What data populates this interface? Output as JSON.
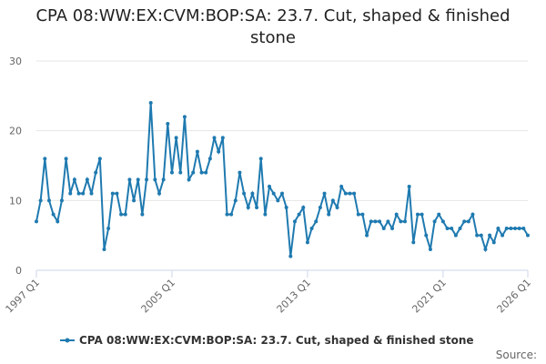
{
  "chart_data": {
    "type": "line",
    "title": "CPA 08:WW:EX:CVM:BOP:SA: 23.7. Cut, shaped & finished stone",
    "source": "Source:",
    "categories": [
      "1997 Q1",
      null,
      null,
      null,
      null,
      null,
      null,
      null,
      null,
      null,
      null,
      null,
      null,
      null,
      null,
      null,
      null,
      null,
      null,
      null,
      null,
      null,
      null,
      null,
      null,
      null,
      null,
      null,
      null,
      null,
      null,
      null,
      "2005 Q1",
      null,
      null,
      null,
      null,
      null,
      null,
      null,
      null,
      null,
      null,
      null,
      null,
      null,
      null,
      null,
      null,
      null,
      null,
      null,
      null,
      null,
      null,
      null,
      null,
      null,
      null,
      null,
      null,
      null,
      null,
      null,
      "2013 Q1",
      null,
      null,
      null,
      null,
      null,
      null,
      null,
      null,
      null,
      null,
      null,
      null,
      null,
      null,
      null,
      null,
      null,
      null,
      null,
      null,
      null,
      null,
      null,
      null,
      null,
      null,
      null,
      null,
      null,
      null,
      null,
      "2021 Q1",
      null,
      null,
      null,
      null,
      null,
      null,
      null,
      null,
      null,
      null,
      null,
      null,
      null,
      null,
      null,
      null,
      null,
      null,
      null,
      "2026 Q1"
    ],
    "series": [
      {
        "name": "CPA 08:WW:EX:CVM:BOP:SA: 23.7. Cut, shaped & finished stone",
        "color": "#1f7ab0",
        "values": [
          7,
          10,
          16,
          10,
          8,
          7,
          10,
          16,
          11,
          13,
          11,
          11,
          13,
          11,
          14,
          16,
          3,
          6,
          11,
          11,
          8,
          8,
          13,
          10,
          13,
          8,
          13,
          24,
          13,
          11,
          13,
          21,
          14,
          19,
          14,
          22,
          13,
          14,
          17,
          14,
          14,
          16,
          19,
          17,
          19,
          8,
          8,
          10,
          14,
          11,
          9,
          11,
          9,
          16,
          8,
          12,
          11,
          10,
          11,
          9,
          2,
          7,
          8,
          9,
          4,
          6,
          7,
          9,
          11,
          8,
          10,
          9,
          12,
          11,
          11,
          11,
          8,
          8,
          5,
          7,
          7,
          7,
          6,
          7,
          6,
          8,
          7,
          7,
          12,
          4,
          8,
          8,
          5,
          3,
          7,
          8,
          7,
          6,
          6,
          5,
          6,
          7,
          7,
          8,
          5,
          5,
          3,
          5,
          4,
          6,
          5,
          6,
          6,
          6,
          6,
          6,
          5
        ]
      }
    ],
    "ylim": [
      0,
      30
    ],
    "yticks": [
      0,
      10,
      20,
      30
    ],
    "grid": true,
    "legend": "bottom"
  }
}
